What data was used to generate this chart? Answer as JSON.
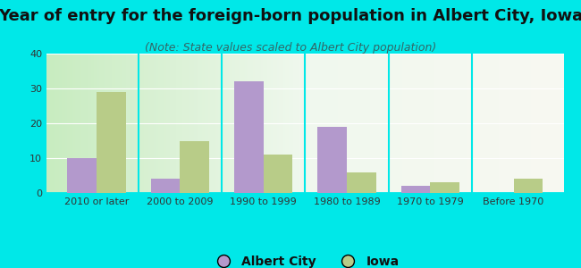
{
  "title": "Year of entry for the foreign-born population in Albert City, Iowa",
  "subtitle": "(Note: State values scaled to Albert City population)",
  "categories": [
    "2010 or later",
    "2000 to 2009",
    "1990 to 1999",
    "1980 to 1989",
    "1970 to 1979",
    "Before 1970"
  ],
  "albert_city": [
    10,
    4,
    32,
    19,
    2,
    0
  ],
  "iowa": [
    29,
    15,
    11,
    6,
    3,
    4
  ],
  "albert_city_color": "#b399cc",
  "iowa_color": "#b8cc88",
  "background_color": "#00e8e8",
  "ylim": [
    0,
    40
  ],
  "yticks": [
    0,
    10,
    20,
    30,
    40
  ],
  "bar_width": 0.35,
  "title_fontsize": 13,
  "subtitle_fontsize": 9,
  "legend_fontsize": 10,
  "tick_fontsize": 8,
  "title_color": "#111111",
  "subtitle_color": "#336666",
  "tick_color": "#333333"
}
